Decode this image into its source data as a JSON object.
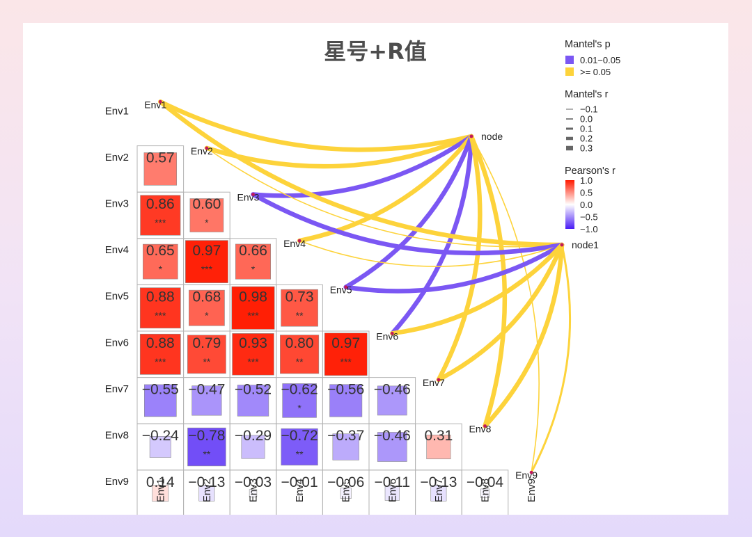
{
  "chart_data": {
    "type": "heatmap",
    "title": "星号+R值",
    "variables": [
      "Env1",
      "Env2",
      "Env3",
      "Env4",
      "Env5",
      "Env6",
      "Env7",
      "Env8",
      "Env9"
    ],
    "correlations": [
      {
        "row": "Env2",
        "col": "Env1",
        "r": 0.57,
        "label": "0.57",
        "stars": ""
      },
      {
        "row": "Env3",
        "col": "Env1",
        "r": 0.86,
        "label": "0.86",
        "stars": "***"
      },
      {
        "row": "Env3",
        "col": "Env2",
        "r": 0.6,
        "label": "0.60",
        "stars": "*"
      },
      {
        "row": "Env4",
        "col": "Env1",
        "r": 0.65,
        "label": "0.65",
        "stars": "*"
      },
      {
        "row": "Env4",
        "col": "Env2",
        "r": 0.97,
        "label": "0.97",
        "stars": "***"
      },
      {
        "row": "Env4",
        "col": "Env3",
        "r": 0.66,
        "label": "0.66",
        "stars": "*"
      },
      {
        "row": "Env5",
        "col": "Env1",
        "r": 0.88,
        "label": "0.88",
        "stars": "***"
      },
      {
        "row": "Env5",
        "col": "Env2",
        "r": 0.68,
        "label": "0.68",
        "stars": "*"
      },
      {
        "row": "Env5",
        "col": "Env3",
        "r": 0.98,
        "label": "0.98",
        "stars": "***"
      },
      {
        "row": "Env5",
        "col": "Env4",
        "r": 0.73,
        "label": "0.73",
        "stars": "**"
      },
      {
        "row": "Env6",
        "col": "Env1",
        "r": 0.88,
        "label": "0.88",
        "stars": "***"
      },
      {
        "row": "Env6",
        "col": "Env2",
        "r": 0.79,
        "label": "0.79",
        "stars": "**"
      },
      {
        "row": "Env6",
        "col": "Env3",
        "r": 0.93,
        "label": "0.93",
        "stars": "***"
      },
      {
        "row": "Env6",
        "col": "Env4",
        "r": 0.8,
        "label": "0.80",
        "stars": "**"
      },
      {
        "row": "Env6",
        "col": "Env5",
        "r": 0.97,
        "label": "0.97",
        "stars": "***"
      },
      {
        "row": "Env7",
        "col": "Env1",
        "r": -0.55,
        "label": "−0.55",
        "stars": ""
      },
      {
        "row": "Env7",
        "col": "Env2",
        "r": -0.47,
        "label": "−0.47",
        "stars": ""
      },
      {
        "row": "Env7",
        "col": "Env3",
        "r": -0.52,
        "label": "−0.52",
        "stars": ""
      },
      {
        "row": "Env7",
        "col": "Env4",
        "r": -0.62,
        "label": "−0.62",
        "stars": "*"
      },
      {
        "row": "Env7",
        "col": "Env5",
        "r": -0.56,
        "label": "−0.56",
        "stars": ""
      },
      {
        "row": "Env7",
        "col": "Env6",
        "r": -0.46,
        "label": "−0.46",
        "stars": ""
      },
      {
        "row": "Env8",
        "col": "Env1",
        "r": -0.24,
        "label": "−0.24",
        "stars": ""
      },
      {
        "row": "Env8",
        "col": "Env2",
        "r": -0.78,
        "label": "−0.78",
        "stars": "**"
      },
      {
        "row": "Env8",
        "col": "Env3",
        "r": -0.29,
        "label": "−0.29",
        "stars": ""
      },
      {
        "row": "Env8",
        "col": "Env4",
        "r": -0.72,
        "label": "−0.72",
        "stars": "**"
      },
      {
        "row": "Env8",
        "col": "Env5",
        "r": -0.37,
        "label": "−0.37",
        "stars": ""
      },
      {
        "row": "Env8",
        "col": "Env6",
        "r": -0.46,
        "label": "−0.46",
        "stars": ""
      },
      {
        "row": "Env8",
        "col": "Env7",
        "r": 0.31,
        "label": "0.31",
        "stars": ""
      },
      {
        "row": "Env9",
        "col": "Env1",
        "r": 0.14,
        "label": "0.14",
        "stars": ""
      },
      {
        "row": "Env9",
        "col": "Env2",
        "r": -0.13,
        "label": "−0.13",
        "stars": ""
      },
      {
        "row": "Env9",
        "col": "Env3",
        "r": -0.03,
        "label": "−0.03",
        "stars": ""
      },
      {
        "row": "Env9",
        "col": "Env4",
        "r": -0.01,
        "label": "−0.01",
        "stars": ""
      },
      {
        "row": "Env9",
        "col": "Env5",
        "r": -0.06,
        "label": "−0.06",
        "stars": ""
      },
      {
        "row": "Env9",
        "col": "Env6",
        "r": -0.11,
        "label": "−0.11",
        "stars": ""
      },
      {
        "row": "Env9",
        "col": "Env7",
        "r": -0.13,
        "label": "−0.13",
        "stars": ""
      },
      {
        "row": "Env9",
        "col": "Env8",
        "r": -0.04,
        "label": "−0.04",
        "stars": ""
      }
    ],
    "nodes": [
      "node",
      "node1"
    ],
    "mantel_links": [
      {
        "from": "node",
        "to": "Env1",
        "p_class": "yellow",
        "r_class": "0.3"
      },
      {
        "from": "node",
        "to": "Env2",
        "p_class": "yellow",
        "r_class": "0.3"
      },
      {
        "from": "node",
        "to": "Env3",
        "p_class": "purple",
        "r_class": "0.3"
      },
      {
        "from": "node",
        "to": "Env4",
        "p_class": "yellow",
        "r_class": "0.3"
      },
      {
        "from": "node",
        "to": "Env5",
        "p_class": "purple",
        "r_class": "0.3"
      },
      {
        "from": "node",
        "to": "Env6",
        "p_class": "purple",
        "r_class": "0.3"
      },
      {
        "from": "node",
        "to": "Env7",
        "p_class": "yellow",
        "r_class": "0.3"
      },
      {
        "from": "node",
        "to": "Env8",
        "p_class": "yellow",
        "r_class": "0.3"
      },
      {
        "from": "node",
        "to": "Env9",
        "p_class": "yellow",
        "r_class": "0.0"
      },
      {
        "from": "node1",
        "to": "Env1",
        "p_class": "yellow",
        "r_class": "0.3"
      },
      {
        "from": "node1",
        "to": "Env2",
        "p_class": "yellow",
        "r_class": "0.0"
      },
      {
        "from": "node1",
        "to": "Env3",
        "p_class": "purple",
        "r_class": "0.3"
      },
      {
        "from": "node1",
        "to": "Env4",
        "p_class": "yellow",
        "r_class": "0.0"
      },
      {
        "from": "node1",
        "to": "Env5",
        "p_class": "purple",
        "r_class": "0.3"
      },
      {
        "from": "node1",
        "to": "Env6",
        "p_class": "yellow",
        "r_class": "0.3"
      },
      {
        "from": "node1",
        "to": "Env7",
        "p_class": "yellow",
        "r_class": "0.3"
      },
      {
        "from": "node1",
        "to": "Env8",
        "p_class": "yellow",
        "r_class": "0.3"
      },
      {
        "from": "node1",
        "to": "Env9",
        "p_class": "yellow",
        "r_class": "0.1"
      }
    ],
    "legend": {
      "mantel_p": {
        "title": "Mantel's p",
        "items": [
          {
            "label": "0.01−0.05",
            "color": "#7b57f3",
            "key": "purple"
          },
          {
            "label": ">= 0.05",
            "color": "#fdd33b",
            "key": "yellow"
          }
        ]
      },
      "mantel_r": {
        "title": "Mantel's r",
        "items": [
          {
            "label": "−0.1",
            "key": "-0.1"
          },
          {
            "label": "0.0",
            "key": "0.0"
          },
          {
            "label": "0.1",
            "key": "0.1"
          },
          {
            "label": "0.2",
            "key": "0.2"
          },
          {
            "label": "0.3",
            "key": "0.3"
          }
        ]
      },
      "pearson_r": {
        "title": "Pearson's r",
        "ticks": [
          "1.0",
          "0.5",
          "0.0",
          "−0.5",
          "−1.0"
        ],
        "range": [
          -1,
          1
        ]
      }
    },
    "colors": {
      "positive": "#ff1a00",
      "negative": "#4a1cf5",
      "neutral": "#ffffff"
    }
  }
}
